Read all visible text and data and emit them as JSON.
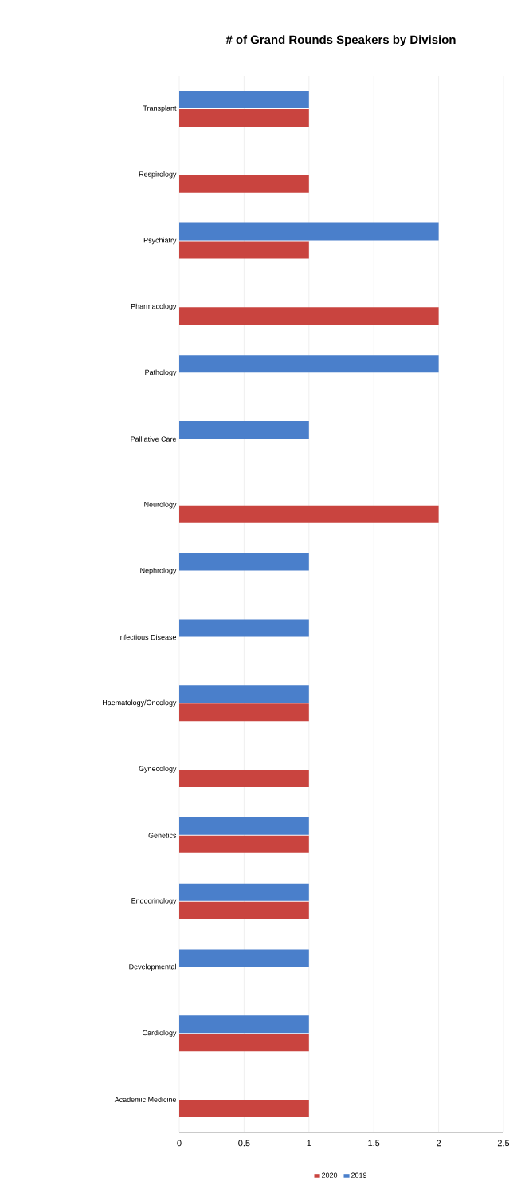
{
  "chart_data": {
    "type": "bar",
    "orientation": "horizontal",
    "title": "# of Grand Rounds Speakers by Division",
    "categories": [
      "Transplant",
      "Respirology",
      "Psychiatry",
      "Pharmacology",
      "Pathology",
      "Palliative Care",
      "Neurology",
      "Nephrology",
      "Infectious Disease",
      "Haematology/Oncology",
      "Gynecology",
      "Genetics",
      "Endocrinology",
      "Developmental",
      "Cardiology",
      "Academic Medicine"
    ],
    "series": [
      {
        "name": "2020",
        "color": "#c9443f",
        "values": [
          1,
          1,
          1,
          2,
          null,
          null,
          2,
          null,
          null,
          1,
          1,
          1,
          1,
          null,
          1,
          1
        ]
      },
      {
        "name": "2019",
        "color": "#4a7fcb",
        "values": [
          1,
          null,
          2,
          null,
          2,
          1,
          null,
          1,
          1,
          1,
          null,
          1,
          1,
          1,
          1,
          null
        ]
      }
    ],
    "xlim": [
      0,
      2.5
    ],
    "xticks": [
      0,
      0.5,
      1,
      1.5,
      2,
      2.5
    ],
    "grid": "x",
    "legend": "bottom"
  }
}
